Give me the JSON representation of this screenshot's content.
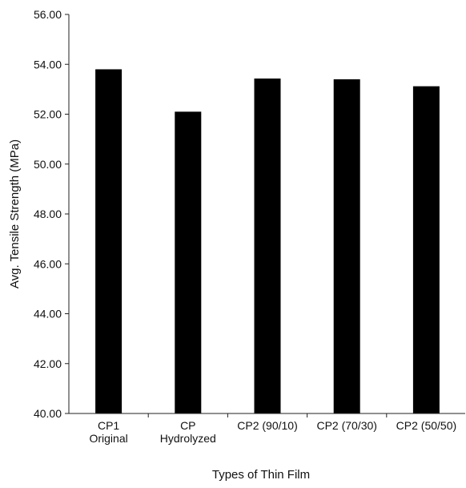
{
  "chart_data": {
    "type": "bar",
    "title": "",
    "xlabel": "Types of Thin Film",
    "ylabel": "Avg. Tensile Strength (MPa)",
    "ylim": [
      40,
      56
    ],
    "yticks": [
      "40.00",
      "42.00",
      "44.00",
      "46.00",
      "48.00",
      "50.00",
      "52.00",
      "54.00",
      "56.00"
    ],
    "categories": [
      [
        "CP1",
        "Original"
      ],
      [
        "CP",
        "Hydrolyzed"
      ],
      [
        "CP2 (90/10)"
      ],
      [
        "CP2 (70/30)"
      ],
      [
        "CP2 (50/50)"
      ]
    ],
    "values": [
      53.8,
      52.1,
      53.43,
      53.4,
      53.12
    ],
    "bar_color": "#000000",
    "grid": false,
    "legend": "none"
  }
}
